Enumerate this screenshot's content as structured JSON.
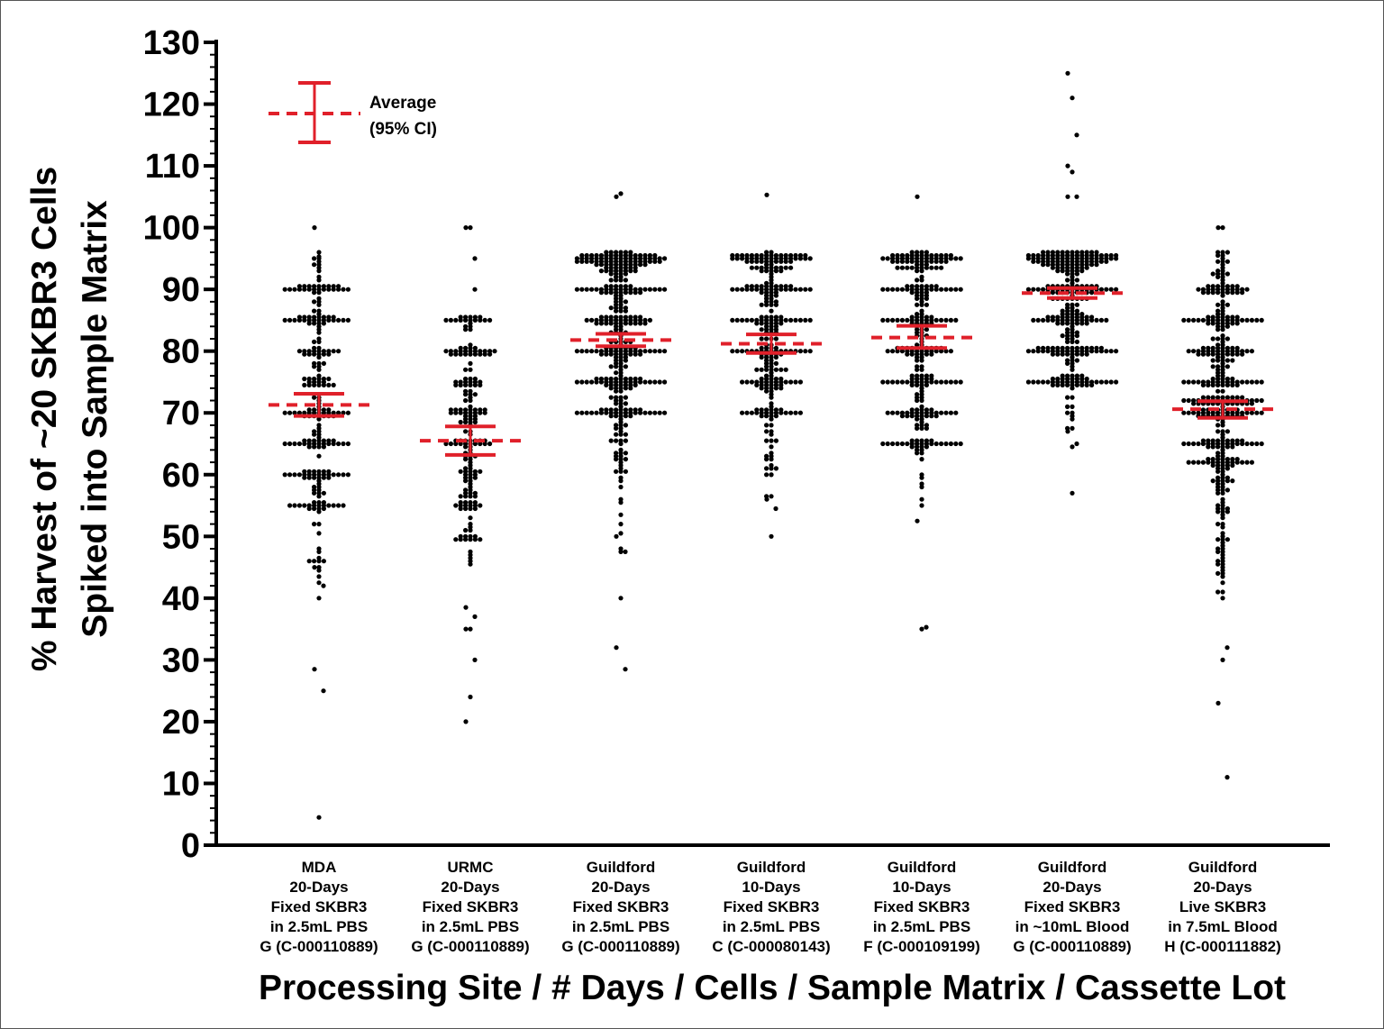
{
  "chart_data": {
    "type": "scatter",
    "subtype": "dot-plot with mean and 95% CI",
    "title": "",
    "ylabel_lines": [
      "% Harvest of ~20 SKBR3 Cells",
      "Spiked into Sample Matrix"
    ],
    "xlabel": "Processing Site / #  Days / Cells / Sample Matrix / Cassette Lot",
    "ylim": [
      0,
      130
    ],
    "yticks": [
      0,
      10,
      20,
      30,
      40,
      50,
      60,
      70,
      80,
      90,
      100,
      110,
      120,
      130
    ],
    "legend": {
      "label_lines": [
        "Average",
        "(95% CI)"
      ],
      "position": "top-left"
    },
    "colors": {
      "points": "#000000",
      "mean": "#e0202a"
    },
    "categories": [
      {
        "lines": [
          "MDA",
          "20-Days",
          "Fixed SKBR3",
          "in 2.5mL PBS",
          "G (C-000110889)"
        ],
        "mean": 71.3,
        "ci": [
          69.5,
          73.1
        ],
        "extra_points": [
          100,
          4.5,
          25,
          28.5,
          40,
          42,
          45,
          95.3
        ]
      },
      {
        "lines": [
          "URMC",
          "20-Days",
          "Fixed SKBR3",
          "in 2.5mL PBS",
          "G (C-000110889)"
        ],
        "mean": 65.5,
        "ci": [
          63.2,
          67.8
        ],
        "extra_points": [
          100,
          100,
          95,
          20,
          24,
          30,
          35,
          35,
          37,
          38.5,
          46,
          90
        ]
      },
      {
        "lines": [
          "Guildford",
          "20-Days",
          "Fixed SKBR3",
          "in 2.5mL PBS",
          "G (C-000110889)"
        ],
        "mean": 81.8,
        "ci": [
          80.8,
          82.8
        ],
        "extra_points": [
          105,
          105.5,
          28.5,
          32,
          40,
          47.5,
          50
        ]
      },
      {
        "lines": [
          "Guildford",
          "10-Days",
          "Fixed SKBR3",
          "in 2.5mL PBS",
          "C (C-000080143)"
        ],
        "mean": 81.2,
        "ci": [
          79.7,
          82.7
        ],
        "extra_points": [
          105.3,
          50,
          54.5,
          56,
          60
        ]
      },
      {
        "lines": [
          "Guildford",
          "10-Days",
          "Fixed SKBR3",
          "in 2.5mL PBS",
          "F (C-000109199)"
        ],
        "mean": 82.2,
        "ci": [
          80.5,
          84.1
        ],
        "extra_points": [
          105,
          35,
          35.3,
          52.5,
          55
        ]
      },
      {
        "lines": [
          "Guildford",
          "20-Days",
          "Fixed SKBR3",
          "in ~10mL Blood",
          "G (C-000110889)"
        ],
        "mean": 89.4,
        "ci": [
          88.6,
          90.2
        ],
        "extra_points": [
          125,
          121,
          115,
          110,
          109,
          105,
          105,
          57,
          65,
          67
        ]
      },
      {
        "lines": [
          "Guildford",
          "20-Days",
          "Live SKBR3",
          "in 7.5mL Blood",
          "H (C-000111882)"
        ],
        "mean": 70.6,
        "ci": [
          69.2,
          71.9
        ],
        "extra_points": [
          100,
          100,
          11,
          23,
          30,
          32
        ]
      }
    ]
  }
}
